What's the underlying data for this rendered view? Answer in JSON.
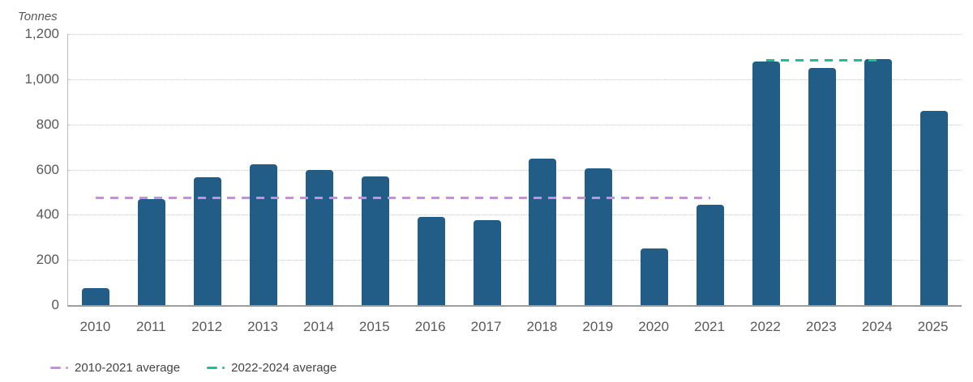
{
  "chart_data": {
    "type": "bar",
    "title": "",
    "xlabel": "",
    "ylabel": "Tonnes",
    "ylim": [
      0,
      1200
    ],
    "grid": "horizontal-dotted",
    "legend_position": "bottom-left",
    "categories": [
      "2010",
      "2011",
      "2012",
      "2013",
      "2014",
      "2015",
      "2016",
      "2017",
      "2018",
      "2019",
      "2020",
      "2021",
      "2022",
      "2023",
      "2024",
      "2025"
    ],
    "values": [
      75,
      470,
      565,
      625,
      600,
      570,
      390,
      375,
      650,
      605,
      250,
      445,
      1080,
      1050,
      1090,
      860
    ],
    "yticks": [
      {
        "value": 1200,
        "label": "1,200"
      },
      {
        "value": 1000,
        "label": "1,000"
      },
      {
        "value": 800,
        "label": "800"
      },
      {
        "value": 600,
        "label": "600"
      },
      {
        "value": 400,
        "label": "400"
      },
      {
        "value": 200,
        "label": "200"
      },
      {
        "value": 0,
        "label": "0"
      }
    ],
    "reference_lines": [
      {
        "label": "2010-2021 average",
        "value": 475,
        "start_category": "2010",
        "end_category": "2021",
        "color": "#c88fe0",
        "style": "dashed"
      },
      {
        "label": "2022-2024 average",
        "value": 1085,
        "start_category": "2022",
        "end_category": "2024",
        "color": "#18c295",
        "style": "dashed"
      }
    ],
    "legend": [
      {
        "label": "2010-2021 average",
        "color": "#c88fe0"
      },
      {
        "label": "2022-2024 average",
        "color": "#18c295"
      }
    ],
    "colors": {
      "bar": "#215d87",
      "avg_2010_2021_line": "#c88fe0",
      "avg_2022_2024_line": "#18c295",
      "gridline": "#c6c6c6",
      "baseline": "#9d9d9d",
      "axis_left": "#bdbdbd",
      "tick_text": "#595959",
      "legend_text": "#444444"
    }
  }
}
